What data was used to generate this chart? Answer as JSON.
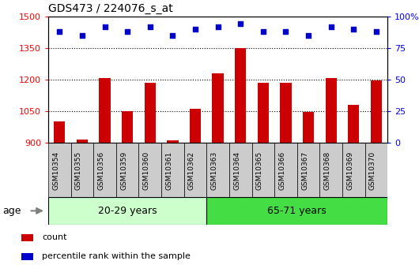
{
  "title": "GDS473 / 224076_s_at",
  "categories": [
    "GSM10354",
    "GSM10355",
    "GSM10356",
    "GSM10359",
    "GSM10360",
    "GSM10361",
    "GSM10362",
    "GSM10363",
    "GSM10364",
    "GSM10365",
    "GSM10366",
    "GSM10367",
    "GSM10368",
    "GSM10369",
    "GSM10370"
  ],
  "counts": [
    1000,
    915,
    1207,
    1050,
    1185,
    912,
    1062,
    1228,
    1348,
    1183,
    1185,
    1048,
    1207,
    1080,
    1197
  ],
  "percentile_ranks": [
    88,
    85,
    92,
    88,
    92,
    85,
    90,
    92,
    94,
    88,
    88,
    85,
    92,
    90,
    88
  ],
  "group1_label": "20-29 years",
  "group2_label": "65-71 years",
  "group1_count": 7,
  "group2_count": 8,
  "ylim_left": [
    900,
    1500
  ],
  "ylim_right": [
    0,
    100
  ],
  "yticks_left": [
    900,
    1050,
    1200,
    1350,
    1500
  ],
  "yticks_right": [
    0,
    25,
    50,
    75,
    100
  ],
  "bar_color": "#CC0000",
  "dot_color": "#0000CC",
  "group1_bg": "#ccffcc",
  "group2_bg": "#44dd44",
  "tick_label_bg": "#cccccc",
  "legend_count_label": "count",
  "legend_pct_label": "percentile rank within the sample",
  "fig_width": 5.3,
  "fig_height": 3.45,
  "dpi": 100
}
